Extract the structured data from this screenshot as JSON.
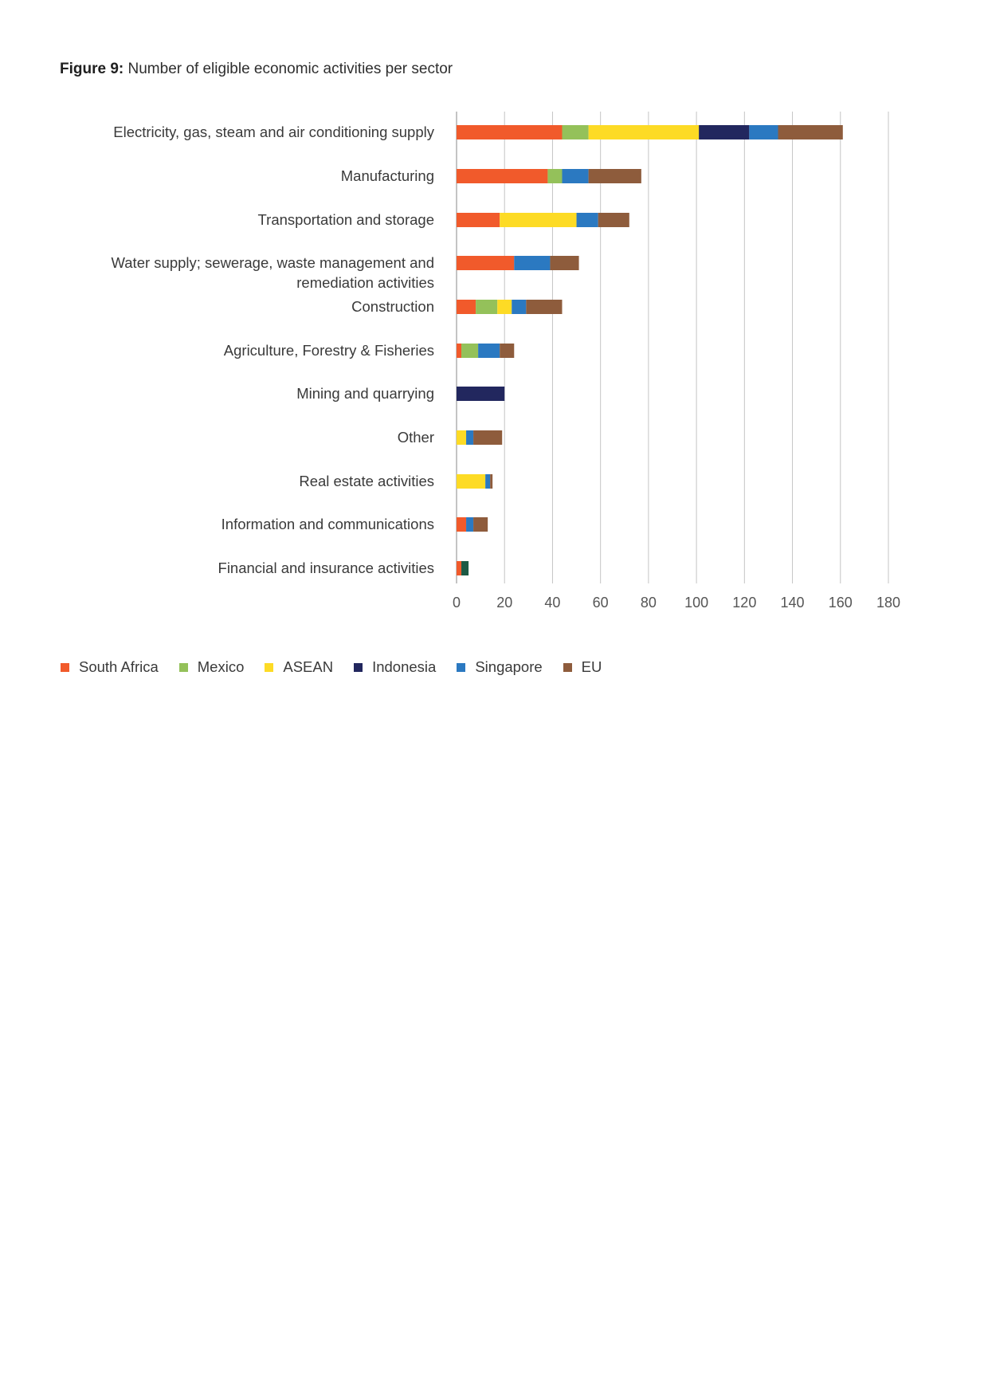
{
  "caption": {
    "label": "Figure 9:",
    "text": "Number of eligible economic activities per sector"
  },
  "chart_data": {
    "type": "bar",
    "orientation": "horizontal",
    "stacked": true,
    "title": "Number of eligible economic activities per sector",
    "xlabel": "",
    "ylabel": "",
    "xlim": [
      0,
      180
    ],
    "xticks": [
      0,
      20,
      40,
      60,
      80,
      100,
      120,
      140,
      160,
      180
    ],
    "grid": "vertical",
    "legend_position": "bottom-left",
    "categories": [
      "Electricity, gas, steam and air conditioning supply",
      "Manufacturing",
      "Transportation and storage",
      "Water supply; sewerage, waste management and remediation activities",
      "Construction",
      "Agriculture, Forestry & Fisheries",
      "Mining and quarrying",
      "Other",
      "Real estate activities",
      "Information and communications",
      "Financial and insurance activities"
    ],
    "series": [
      {
        "name": "South Africa",
        "color": "#f15a2b",
        "values": [
          44,
          38,
          18,
          24,
          8,
          2,
          0,
          0,
          0,
          4,
          2
        ]
      },
      {
        "name": "Mexico",
        "color": "#94c15a",
        "values": [
          11,
          6,
          0,
          0,
          9,
          7,
          0,
          0,
          0,
          0,
          0
        ]
      },
      {
        "name": "ASEAN",
        "color": "#fddb25",
        "values": [
          46,
          0,
          32,
          0,
          6,
          0,
          0,
          4,
          12,
          0,
          0
        ]
      },
      {
        "name": "Indonesia",
        "color": "#22275e",
        "values": [
          21,
          0,
          0,
          0,
          0,
          0,
          20,
          0,
          0,
          0,
          0
        ]
      },
      {
        "name": "Singapore",
        "color": "#2b79c1",
        "values": [
          12,
          11,
          9,
          15,
          6,
          9,
          0,
          3,
          2,
          3,
          0
        ]
      },
      {
        "name": "EU",
        "color": "#8e5c3c",
        "values": [
          27,
          22,
          13,
          12,
          15,
          6,
          0,
          12,
          1,
          6,
          0
        ]
      }
    ],
    "extra_segments": [
      {
        "category": "Financial and insurance activities",
        "color": "#1d5a45",
        "value": 3
      }
    ]
  }
}
